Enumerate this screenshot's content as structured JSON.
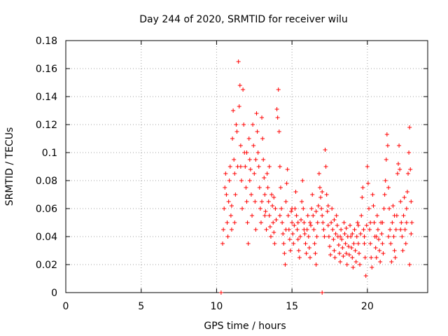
{
  "chart_data": {
    "type": "scatter",
    "title": "Day 244 of 2020, SRMTID for receiver wilu",
    "xlabel": "GPS time / hours",
    "ylabel": "SRMTID / TECUs",
    "xlim": [
      0,
      24
    ],
    "ylim": [
      0,
      0.18
    ],
    "x_ticks": [
      "0",
      "5",
      "10",
      "15",
      "20"
    ],
    "y_ticks": [
      "0",
      "0.02",
      "0.04",
      "0.06",
      "0.08",
      "0.1",
      "0.12",
      "0.14",
      "0.16",
      "0.18"
    ],
    "grid": true,
    "marker": "+",
    "color": "#ff0000",
    "series": [
      {
        "points": [
          [
            10.3,
            0.0
          ],
          [
            17.0,
            0.0
          ],
          [
            10.4,
            0.035
          ],
          [
            10.45,
            0.045
          ],
          [
            10.5,
            0.06
          ],
          [
            10.55,
            0.075
          ],
          [
            10.6,
            0.085
          ],
          [
            10.65,
            0.07
          ],
          [
            10.7,
            0.05
          ],
          [
            10.75,
            0.04
          ],
          [
            10.8,
            0.065
          ],
          [
            10.85,
            0.08
          ],
          [
            10.9,
            0.09
          ],
          [
            10.95,
            0.055
          ],
          [
            11.0,
            0.045
          ],
          [
            11.05,
            0.11
          ],
          [
            11.1,
            0.13
          ],
          [
            11.15,
            0.095
          ],
          [
            11.2,
            0.085
          ],
          [
            11.25,
            0.07
          ],
          [
            11.3,
            0.12
          ],
          [
            11.35,
            0.115
          ],
          [
            11.4,
            0.09
          ],
          [
            11.45,
            0.165
          ],
          [
            11.5,
            0.133
          ],
          [
            11.55,
            0.148
          ],
          [
            11.6,
            0.105
          ],
          [
            11.65,
            0.08
          ],
          [
            11.7,
            0.06
          ],
          [
            11.75,
            0.145
          ],
          [
            11.8,
            0.12
          ],
          [
            11.85,
            0.1
          ],
          [
            11.9,
            0.09
          ],
          [
            11.95,
            0.075
          ],
          [
            12.0,
            0.065
          ],
          [
            12.05,
            0.05
          ],
          [
            12.1,
            0.035
          ],
          [
            12.15,
            0.11
          ],
          [
            12.2,
            0.095
          ],
          [
            12.25,
            0.088
          ],
          [
            12.3,
            0.07
          ],
          [
            12.35,
            0.055
          ],
          [
            12.4,
            0.12
          ],
          [
            12.45,
            0.105
          ],
          [
            12.5,
            0.085
          ],
          [
            12.55,
            0.065
          ],
          [
            12.6,
            0.045
          ],
          [
            12.65,
            0.128
          ],
          [
            12.7,
            0.115
          ],
          [
            12.75,
            0.1
          ],
          [
            12.8,
            0.09
          ],
          [
            12.85,
            0.075
          ],
          [
            12.9,
            0.06
          ],
          [
            12.95,
            0.05
          ],
          [
            13.0,
            0.125
          ],
          [
            13.05,
            0.11
          ],
          [
            13.1,
            0.095
          ],
          [
            13.15,
            0.082
          ],
          [
            13.2,
            0.07
          ],
          [
            13.25,
            0.058
          ],
          [
            13.3,
            0.045
          ],
          [
            13.35,
            0.085
          ],
          [
            13.4,
            0.075
          ],
          [
            13.45,
            0.065
          ],
          [
            13.5,
            0.055
          ],
          [
            13.55,
            0.047
          ],
          [
            13.6,
            0.04
          ],
          [
            13.65,
            0.07
          ],
          [
            13.7,
            0.062
          ],
          [
            13.75,
            0.05
          ],
          [
            13.8,
            0.043
          ],
          [
            13.85,
            0.035
          ],
          [
            13.9,
            0.06
          ],
          [
            13.95,
            0.052
          ],
          [
            14.0,
            0.131
          ],
          [
            14.05,
            0.125
          ],
          [
            14.1,
            0.145
          ],
          [
            14.15,
            0.115
          ],
          [
            14.2,
            0.09
          ],
          [
            14.25,
            0.075
          ],
          [
            14.3,
            0.06
          ],
          [
            14.35,
            0.05
          ],
          [
            14.4,
            0.042
          ],
          [
            14.45,
            0.035
          ],
          [
            14.5,
            0.028
          ],
          [
            14.55,
            0.02
          ],
          [
            14.6,
            0.065
          ],
          [
            14.65,
            0.078
          ],
          [
            14.7,
            0.088
          ],
          [
            14.75,
            0.055
          ],
          [
            14.8,
            0.045
          ],
          [
            14.85,
            0.038
          ],
          [
            14.9,
            0.03
          ],
          [
            14.95,
            0.058
          ],
          [
            15.0,
            0.05
          ],
          [
            15.05,
            0.042
          ],
          [
            15.1,
            0.035
          ],
          [
            15.15,
            0.048
          ],
          [
            15.2,
            0.06
          ],
          [
            15.25,
            0.072
          ],
          [
            15.3,
            0.055
          ],
          [
            15.35,
            0.045
          ],
          [
            15.4,
            0.038
          ],
          [
            15.45,
            0.03
          ],
          [
            15.5,
            0.025
          ],
          [
            15.55,
            0.04
          ],
          [
            15.6,
            0.052
          ],
          [
            15.65,
            0.065
          ],
          [
            15.7,
            0.08
          ],
          [
            15.75,
            0.06
          ],
          [
            15.8,
            0.05
          ],
          [
            15.85,
            0.042
          ],
          [
            15.9,
            0.035
          ],
          [
            15.95,
            0.028
          ],
          [
            16.0,
            0.045
          ],
          [
            16.05,
            0.055
          ],
          [
            16.1,
            0.04
          ],
          [
            16.15,
            0.032
          ],
          [
            16.2,
            0.025
          ],
          [
            16.25,
            0.048
          ],
          [
            16.3,
            0.06
          ],
          [
            16.35,
            0.07
          ],
          [
            16.4,
            0.055
          ],
          [
            16.45,
            0.045
          ],
          [
            16.5,
            0.035
          ],
          [
            16.55,
            0.028
          ],
          [
            16.6,
            0.02
          ],
          [
            16.65,
            0.04
          ],
          [
            16.7,
            0.05
          ],
          [
            16.75,
            0.062
          ],
          [
            16.8,
            0.085
          ],
          [
            16.85,
            0.075
          ],
          [
            16.9,
            0.068
          ],
          [
            16.95,
            0.06
          ],
          [
            17.0,
            0.055
          ],
          [
            17.05,
            0.05
          ],
          [
            17.1,
            0.045
          ],
          [
            17.15,
            0.04
          ],
          [
            17.2,
            0.102
          ],
          [
            17.25,
            0.09
          ],
          [
            17.3,
            0.07
          ],
          [
            17.35,
            0.058
          ],
          [
            17.4,
            0.048
          ],
          [
            17.45,
            0.04
          ],
          [
            17.5,
            0.033
          ],
          [
            17.55,
            0.027
          ],
          [
            17.6,
            0.05
          ],
          [
            17.65,
            0.06
          ],
          [
            17.7,
            0.045
          ],
          [
            17.75,
            0.038
          ],
          [
            17.8,
            0.03
          ],
          [
            17.85,
            0.025
          ],
          [
            17.9,
            0.042
          ],
          [
            17.95,
            0.055
          ],
          [
            18.0,
            0.048
          ],
          [
            18.05,
            0.04
          ],
          [
            18.1,
            0.034
          ],
          [
            18.15,
            0.028
          ],
          [
            18.2,
            0.022
          ],
          [
            18.25,
            0.045
          ],
          [
            18.3,
            0.038
          ],
          [
            18.35,
            0.032
          ],
          [
            18.4,
            0.026
          ],
          [
            18.45,
            0.05
          ],
          [
            18.5,
            0.042
          ],
          [
            18.55,
            0.035
          ],
          [
            18.6,
            0.028
          ],
          [
            18.65,
            0.02
          ],
          [
            18.7,
            0.04
          ],
          [
            18.75,
            0.033
          ],
          [
            18.8,
            0.027
          ],
          [
            18.85,
            0.048
          ],
          [
            18.9,
            0.04
          ],
          [
            18.95,
            0.032
          ],
          [
            19.0,
            0.025
          ],
          [
            19.05,
            0.018
          ],
          [
            19.1,
            0.035
          ],
          [
            19.15,
            0.045
          ],
          [
            19.2,
            0.03
          ],
          [
            19.25,
            0.022
          ],
          [
            19.3,
            0.04
          ],
          [
            19.35,
            0.05
          ],
          [
            19.4,
            0.035
          ],
          [
            19.45,
            0.028
          ],
          [
            19.5,
            0.02
          ],
          [
            19.55,
            0.042
          ],
          [
            19.6,
            0.055
          ],
          [
            19.65,
            0.068
          ],
          [
            19.7,
            0.075
          ],
          [
            19.75,
            0.045
          ],
          [
            19.8,
            0.035
          ],
          [
            19.85,
            0.025
          ],
          [
            19.9,
            0.012
          ],
          [
            19.95,
            0.048
          ],
          [
            20.0,
            0.09
          ],
          [
            20.05,
            0.078
          ],
          [
            20.1,
            0.06
          ],
          [
            20.15,
            0.045
          ],
          [
            20.2,
            0.035
          ],
          [
            20.25,
            0.025
          ],
          [
            20.3,
            0.018
          ],
          [
            20.35,
            0.07
          ],
          [
            20.4,
            0.062
          ],
          [
            20.45,
            0.05
          ],
          [
            20.5,
            0.04
          ],
          [
            20.55,
            0.032
          ],
          [
            20.6,
            0.025
          ],
          [
            20.65,
            0.055
          ],
          [
            20.7,
            0.045
          ],
          [
            20.75,
            0.038
          ],
          [
            20.8,
            0.03
          ],
          [
            20.85,
            0.022
          ],
          [
            20.9,
            0.05
          ],
          [
            20.95,
            0.042
          ],
          [
            21.0,
            0.035
          ],
          [
            21.05,
            0.028
          ],
          [
            21.1,
            0.06
          ],
          [
            21.15,
            0.07
          ],
          [
            21.2,
            0.08
          ],
          [
            21.25,
            0.095
          ],
          [
            21.3,
            0.113
          ],
          [
            21.35,
            0.105
          ],
          [
            21.4,
            0.075
          ],
          [
            21.45,
            0.06
          ],
          [
            21.5,
            0.045
          ],
          [
            21.55,
            0.035
          ],
          [
            21.6,
            0.022
          ],
          [
            21.65,
            0.05
          ],
          [
            21.7,
            0.062
          ],
          [
            21.75,
            0.04
          ],
          [
            21.8,
            0.03
          ],
          [
            21.85,
            0.025
          ],
          [
            21.9,
            0.045
          ],
          [
            21.95,
            0.055
          ],
          [
            22.0,
            0.085
          ],
          [
            22.05,
            0.092
          ],
          [
            22.1,
            0.105
          ],
          [
            22.15,
            0.088
          ],
          [
            22.2,
            0.065
          ],
          [
            22.25,
            0.05
          ],
          [
            22.3,
            0.04
          ],
          [
            22.35,
            0.03
          ],
          [
            22.4,
            0.055
          ],
          [
            22.45,
            0.068
          ],
          [
            22.5,
            0.045
          ],
          [
            22.55,
            0.035
          ],
          [
            22.6,
            0.06
          ],
          [
            22.65,
            0.072
          ],
          [
            22.7,
            0.085
          ],
          [
            22.75,
            0.1
          ],
          [
            22.8,
            0.118
          ],
          [
            22.85,
            0.088
          ],
          [
            22.9,
            0.065
          ],
          [
            22.95,
            0.05
          ],
          [
            22.8,
            0.02
          ],
          [
            22.9,
            0.042
          ],
          [
            11.0,
            0.062
          ],
          [
            11.2,
            0.05
          ],
          [
            11.6,
            0.09
          ],
          [
            12.0,
            0.1
          ],
          [
            12.2,
            0.08
          ],
          [
            12.6,
            0.095
          ],
          [
            13.0,
            0.065
          ],
          [
            13.2,
            0.055
          ],
          [
            13.5,
            0.09
          ],
          [
            13.8,
            0.068
          ],
          [
            14.2,
            0.055
          ],
          [
            14.6,
            0.045
          ],
          [
            15.0,
            0.06
          ],
          [
            15.4,
            0.05
          ],
          [
            15.8,
            0.045
          ],
          [
            16.2,
            0.05
          ],
          [
            16.6,
            0.058
          ],
          [
            17.0,
            0.072
          ],
          [
            17.4,
            0.062
          ],
          [
            17.8,
            0.052
          ],
          [
            18.2,
            0.04
          ],
          [
            18.6,
            0.046
          ],
          [
            19.0,
            0.042
          ],
          [
            19.4,
            0.048
          ],
          [
            19.8,
            0.04
          ],
          [
            20.2,
            0.05
          ],
          [
            20.6,
            0.04
          ],
          [
            21.0,
            0.05
          ],
          [
            21.4,
            0.04
          ],
          [
            21.8,
            0.055
          ],
          [
            22.2,
            0.045
          ],
          [
            22.6,
            0.05
          ]
        ]
      }
    ]
  }
}
